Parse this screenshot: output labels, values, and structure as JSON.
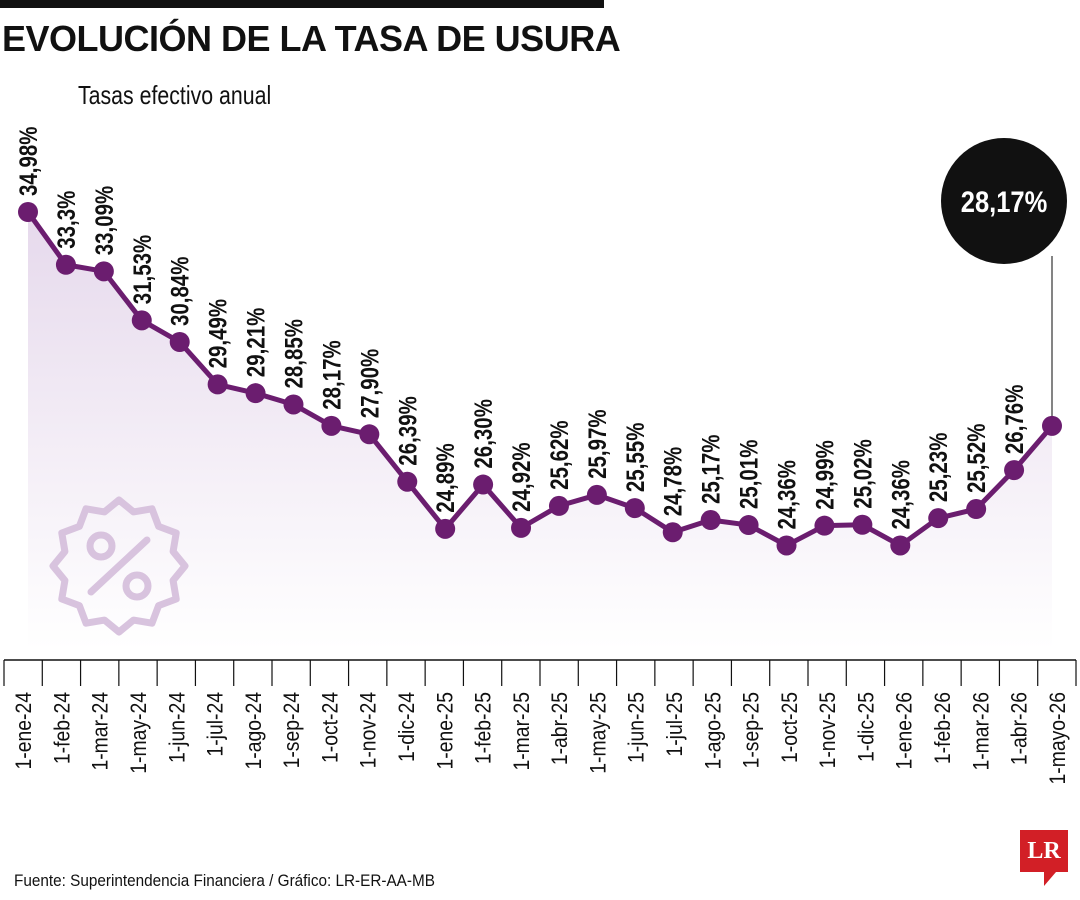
{
  "title": "EVOLUCIÓN DE LA TASA DE USURA",
  "subtitle": "Tasas efectivo anual",
  "source": "Fuente: Superintendencia Financiera / Gráfico: LR-ER-AA-MB",
  "logo": "LR",
  "colors": {
    "line": "#6b1d6f",
    "area_top": "#e6d9ec",
    "area_bottom": "#ffffff",
    "badge": "#111111",
    "icon": "#d8c3de",
    "logo": "#d21f26"
  },
  "icons": {
    "watermark": "percent-badge-icon"
  },
  "chart_data": {
    "type": "line",
    "title": "EVOLUCIÓN DE LA TASA DE USURA",
    "subtitle": "Tasas efectivo anual",
    "categories": [
      "1-ene-24",
      "1-feb-24",
      "1-mar-24",
      "1-may-24",
      "1-jun-24",
      "1-jul-24",
      "1-ago-24",
      "1-sep-24",
      "1-oct-24",
      "1-nov-24",
      "1-dic-24",
      "1-ene-25",
      "1-feb-25",
      "1-mar-25",
      "1-abr-25",
      "1-may-25",
      "1-jun-25",
      "1-jul-25",
      "1-ago-25",
      "1-sep-25",
      "1-oct-25",
      "1-nov-25",
      "1-dic-25",
      "1-ene-26",
      "1-feb-26",
      "1-mar-26",
      "1-abr-26",
      "1-mayo-26"
    ],
    "values": [
      34.98,
      33.3,
      33.09,
      31.53,
      30.84,
      29.49,
      29.21,
      28.85,
      28.17,
      27.9,
      26.39,
      24.89,
      26.3,
      24.92,
      25.62,
      25.97,
      25.55,
      24.78,
      25.17,
      25.01,
      24.36,
      24.99,
      25.02,
      24.36,
      25.23,
      25.52,
      26.76,
      28.17
    ],
    "labels": [
      "34,98%",
      "33,3%",
      "33,09%",
      "31,53%",
      "30,84%",
      "29,49%",
      "29,21%",
      "28,85%",
      "28,17%",
      "27,90%",
      "26,39%",
      "24,89%",
      "26,30%",
      "24,92%",
      "25,62%",
      "25,97%",
      "25,55%",
      "24,78%",
      "25,17%",
      "25,01%",
      "24,36%",
      "24,99%",
      "25,02%",
      "24,36%",
      "25,23%",
      "25,52%",
      "26,76%",
      ""
    ],
    "highlight": {
      "index": 27,
      "label": "28,17%"
    },
    "xlabel": "",
    "ylabel": "",
    "grid": false,
    "legend": "none"
  }
}
